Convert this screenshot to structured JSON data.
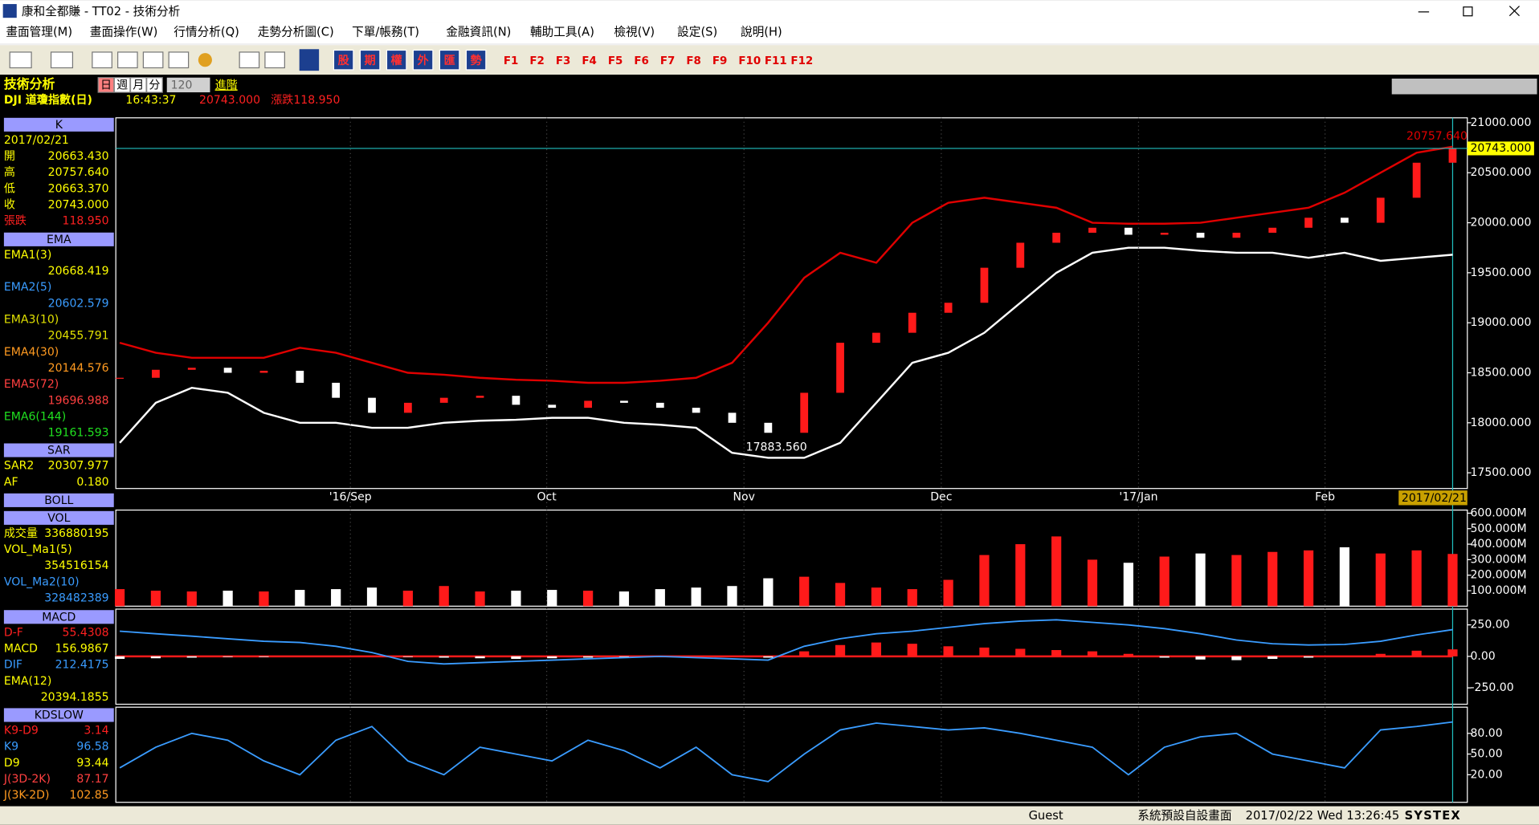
{
  "window": {
    "title": "康和全都賺 - TT02 - 技術分析",
    "menus": [
      "畫面管理(M)",
      "畫面操作(W)",
      "行情分析(Q)",
      "走勢分析圖(C)",
      "下單/帳務(T)",
      "金融資訊(N)",
      "輔助工具(A)",
      "檢視(V)",
      "設定(S)",
      "說明(H)"
    ],
    "market_buttons": [
      "股",
      "期",
      "權",
      "外",
      "匯",
      "勢"
    ],
    "function_keys": [
      "F1",
      "F2",
      "F3",
      "F4",
      "F5",
      "F6",
      "F7",
      "F8",
      "F9",
      "F10",
      "F11",
      "F12"
    ]
  },
  "header": {
    "title": "技術分析",
    "periods": [
      "日",
      "週",
      "月",
      "分"
    ],
    "count": "120",
    "advanced": "進階",
    "symbol": "DJI  道瓊指數(日)",
    "time": "16:43:37",
    "price": "20743.000",
    "change": "漲跌118.950"
  },
  "left_panel": [
    {
      "header": "K",
      "rows": [
        {
          "label": "2017/02/21",
          "color": "#ffff00"
        },
        {
          "label": "開",
          "value": "20663.430",
          "color": "#ffff00"
        },
        {
          "label": "高",
          "value": "20757.640",
          "color": "#ffff00"
        },
        {
          "label": "低",
          "value": "20663.370",
          "color": "#ffff00"
        },
        {
          "label": "收",
          "value": "20743.000",
          "color": "#ffff00"
        },
        {
          "label": "張跌",
          "value": "118.950",
          "color": "#ff2020"
        }
      ]
    },
    {
      "header": "EMA",
      "rows": [
        {
          "label": "EMA1(3)",
          "color": "#ffff00"
        },
        {
          "value": "20668.419",
          "color": "#ffff00"
        },
        {
          "label": "EMA2(5)",
          "color": "#3a9cff"
        },
        {
          "value": "20602.579",
          "color": "#3a9cff"
        },
        {
          "label": "EMA3(10)",
          "color": "#e0e000"
        },
        {
          "value": "20455.791",
          "color": "#e0e000"
        },
        {
          "label": "EMA4(30)",
          "color": "#ff9a20"
        },
        {
          "value": "20144.576",
          "color": "#ff9a20"
        },
        {
          "label": "EMA5(72)",
          "color": "#ff4040"
        },
        {
          "value": "19696.988",
          "color": "#ff4040"
        },
        {
          "label": "EMA6(144)",
          "color": "#20e020"
        },
        {
          "value": "19161.593",
          "color": "#20e020"
        }
      ]
    },
    {
      "header": "SAR",
      "rows": [
        {
          "label": "SAR2",
          "value": "20307.977",
          "color": "#ffff00"
        },
        {
          "label": "AF",
          "value": "0.180",
          "color": "#ffff00"
        }
      ]
    },
    {
      "header": "BOLL",
      "rows": []
    },
    {
      "header": "VOL",
      "rows": [
        {
          "label": "成交量",
          "value": "336880195",
          "color": "#ffff00"
        },
        {
          "label": "VOL_Ma1(5)",
          "color": "#ffff00"
        },
        {
          "value": "354516154",
          "color": "#ffff00"
        },
        {
          "label": "VOL_Ma2(10)",
          "color": "#3a9cff"
        },
        {
          "value": "328482389",
          "color": "#3a9cff"
        }
      ]
    },
    {
      "header": "MACD",
      "rows": [
        {
          "label": "D-F",
          "value": "55.4308",
          "color": "#ff2020"
        },
        {
          "label": "MACD",
          "value": "156.9867",
          "color": "#ffff00"
        },
        {
          "label": "DIF",
          "value": "212.4175",
          "color": "#3a9cff"
        },
        {
          "label": "EMA(12)",
          "color": "#ffff00"
        },
        {
          "value": "20394.1855",
          "color": "#ffff00"
        }
      ]
    },
    {
      "header": "KDSLOW",
      "rows": [
        {
          "label": "K9-D9",
          "value": "3.14",
          "color": "#ff2020"
        },
        {
          "label": "K9",
          "value": "96.58",
          "color": "#3a9cff"
        },
        {
          "label": "D9",
          "value": "93.44",
          "color": "#ffff00"
        },
        {
          "label": "J(3D-2K)",
          "value": "87.17",
          "color": "#ff4040"
        },
        {
          "label": "J(3K-2D)",
          "value": "102.85",
          "color": "#ff9a20"
        }
      ]
    }
  ],
  "price_chart": {
    "type": "candlestick",
    "close": [
      18450,
      18530,
      18550,
      18500,
      18520,
      18400,
      18250,
      18100,
      18200,
      18250,
      18270,
      18180,
      18150,
      18220,
      18200,
      18150,
      18100,
      18000,
      17900,
      18300,
      18800,
      18900,
      19100,
      19200,
      19550,
      19800,
      19900,
      19950,
      19880,
      19900,
      19850,
      19900,
      19950,
      20050,
      20000,
      20250,
      20600,
      20743
    ],
    "boll_upper": [
      18800,
      18700,
      18650,
      18650,
      18650,
      18750,
      18700,
      18600,
      18500,
      18480,
      18450,
      18430,
      18420,
      18400,
      18400,
      18420,
      18450,
      18600,
      19000,
      19450,
      19700,
      19600,
      20000,
      20200,
      20250,
      20200,
      20150,
      20000,
      19990,
      19990,
      20000,
      20050,
      20100,
      20150,
      20300,
      20500,
      20700,
      20760
    ],
    "boll_lower": [
      17800,
      18200,
      18350,
      18300,
      18100,
      18000,
      18000,
      17950,
      17950,
      18000,
      18020,
      18030,
      18050,
      18050,
      18000,
      17980,
      17950,
      17700,
      17650,
      17650,
      17800,
      18200,
      18600,
      18700,
      18900,
      19200,
      19500,
      19700,
      19750,
      19750,
      19720,
      19700,
      19700,
      19650,
      19700,
      19620,
      19650,
      19680
    ],
    "up_color": "#ff1a1a",
    "down_color": "#ffffff",
    "upper_color": "#e00000",
    "lower_color": "#ffffff",
    "ylim": [
      17343,
      21049
    ],
    "yticks": [
      {
        "value": 21000,
        "label": "21000.000"
      },
      {
        "value": 20500,
        "label": "20500.000"
      },
      {
        "value": 20000,
        "label": "20000.000"
      },
      {
        "value": 19500,
        "label": "19500.000"
      },
      {
        "value": 19000,
        "label": "19000.000"
      },
      {
        "value": 18500,
        "label": "18500.000"
      },
      {
        "value": 18000,
        "label": "18000.000"
      },
      {
        "value": 17500,
        "label": "17500.000"
      }
    ],
    "x_labels": [
      "'16/Sep",
      "Oct",
      "Nov",
      "Dec",
      "'17/Jan",
      "Feb"
    ],
    "last_label": "20743.000",
    "high_label": "20757.640",
    "low_label": "17883.560",
    "date_label": "2017/02/21"
  },
  "volume_chart": {
    "type": "bar",
    "color": "#ff1a1a",
    "values": [
      110000000,
      100000000,
      95000000,
      100000000,
      95000000,
      105000000,
      110000000,
      120000000,
      100000000,
      130000000,
      95000000,
      100000000,
      105000000,
      100000000,
      95000000,
      110000000,
      120000000,
      130000000,
      180000000,
      190000000,
      150000000,
      120000000,
      110000000,
      170000000,
      330000000,
      400000000,
      450000000,
      300000000,
      280000000,
      320000000,
      340000000,
      330000000,
      350000000,
      360000000,
      380000000,
      340000000,
      360000000,
      337000000
    ],
    "ylim": [
      0,
      620000000
    ],
    "yticks": [
      {
        "value": 600000000,
        "label": "600.000M"
      },
      {
        "value": 500000000,
        "label": "500.000M"
      },
      {
        "value": 400000000,
        "label": "400.000M"
      },
      {
        "value": 300000000,
        "label": "300.000M"
      },
      {
        "value": 200000000,
        "label": "200.000M"
      },
      {
        "value": 100000000,
        "label": "100.000M"
      }
    ]
  },
  "macd_chart": {
    "type": "bar",
    "values": [
      -20,
      -15,
      -10,
      -5,
      -5,
      0,
      5,
      0,
      -5,
      -10,
      -15,
      -20,
      -15,
      -10,
      -5,
      0,
      5,
      0,
      -10,
      40,
      90,
      110,
      100,
      80,
      70,
      60,
      50,
      40,
      20,
      -10,
      -25,
      -30,
      -20,
      -10,
      0,
      20,
      45,
      55.43
    ],
    "dif": [
      200,
      180,
      160,
      140,
      120,
      110,
      80,
      30,
      -40,
      -60,
      -50,
      -40,
      -30,
      -20,
      -10,
      0,
      -10,
      -20,
      -30,
      80,
      140,
      180,
      200,
      230,
      260,
      280,
      290,
      270,
      250,
      220,
      180,
      130,
      100,
      90,
      95,
      120,
      170,
      212.42
    ],
    "color": "#ff1a1a",
    "dif_color": "#3a9cff",
    "ylim": [
      -380,
      375
    ],
    "yticks": [
      {
        "value": 250,
        "label": "250.00"
      },
      {
        "value": 0,
        "label": "0.00"
      },
      {
        "value": -250,
        "label": "-250.00"
      }
    ]
  },
  "kd_chart": {
    "type": "line",
    "values": [
      30,
      60,
      80,
      70,
      40,
      20,
      70,
      90,
      40,
      20,
      60,
      50,
      40,
      70,
      55,
      30,
      60,
      20,
      10,
      50,
      85,
      95,
      90,
      85,
      88,
      80,
      70,
      60,
      20,
      60,
      75,
      80,
      50,
      40,
      30,
      85,
      90,
      96.58
    ],
    "color": "#3a9cff",
    "ylim": [
      -20,
      118
    ],
    "yticks": [
      {
        "value": 80,
        "label": "80.00"
      },
      {
        "value": 50,
        "label": "50.00"
      },
      {
        "value": 20,
        "label": "20.00"
      }
    ]
  },
  "status": {
    "user": "Guest",
    "layout": "系統預設自設畫面",
    "datetime": "2017/02/22 Wed 13:26:45",
    "brand": "SYSTEX"
  }
}
